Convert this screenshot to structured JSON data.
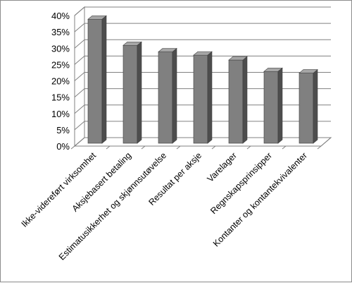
{
  "chart_data": {
    "type": "bar",
    "style": "3d-column",
    "categories": [
      "Ikke-videreført virksomhet",
      "Aksjebasert betaling",
      "Estimatusikkerhet og skjønnsutøvelse",
      "Resultat per aksje",
      "Varelager",
      "Regnskapsprinsipper",
      "Kontanter og kontantekvivalenter"
    ],
    "values": [
      38,
      30,
      28,
      27,
      25.5,
      22,
      21.5
    ],
    "y_unit": "percent",
    "ylim": [
      0,
      40
    ],
    "yticks": [
      "0%",
      "5%",
      "10%",
      "15%",
      "20%",
      "25%",
      "30%",
      "35%",
      "40%"
    ],
    "grid": true,
    "legend": "none",
    "colors": {
      "bar_front": "#808080",
      "bar_side": "#4d4d4d",
      "bar_top": "#a6a6a6",
      "grid": "#808080",
      "frame": "#8c8c8c"
    }
  }
}
